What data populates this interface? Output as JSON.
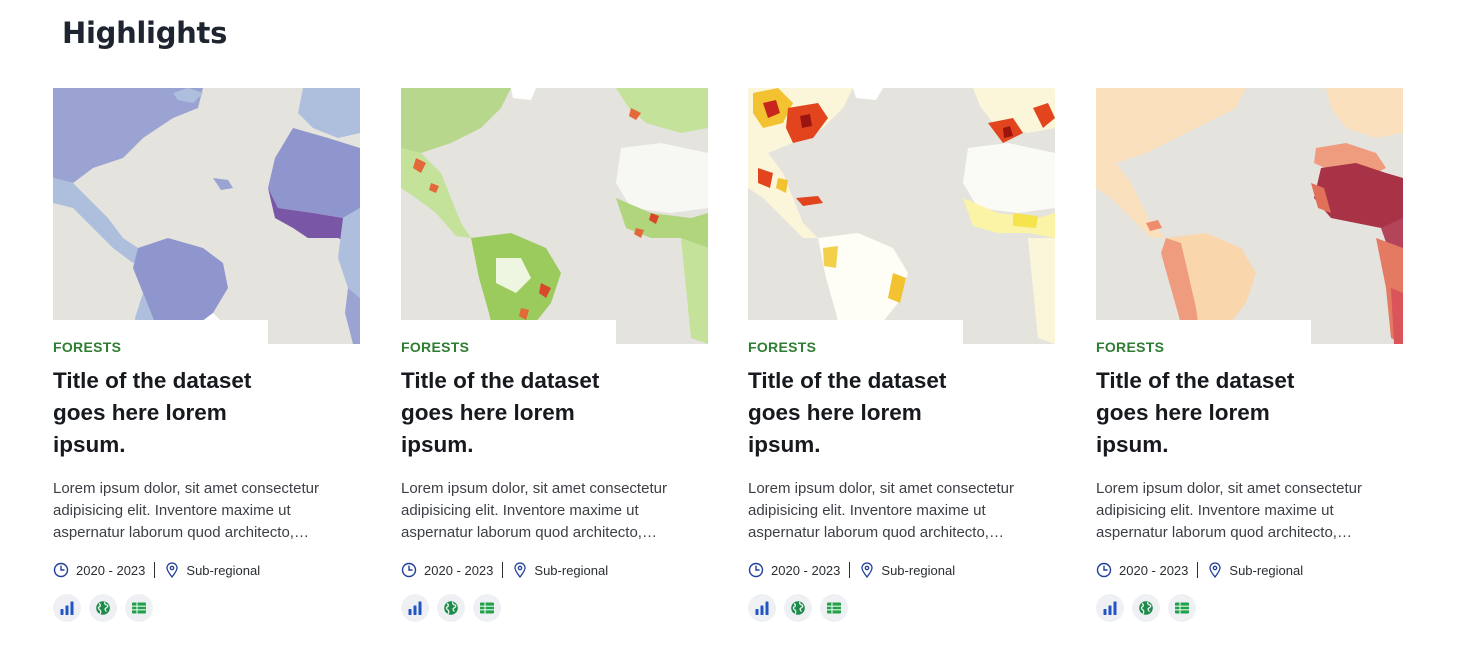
{
  "section": {
    "title": "Highlights"
  },
  "cards": [
    {
      "category": "FORESTS",
      "title": "Title of the dataset goes here lorem ipsum.",
      "description": "Lorem ipsum dolor, sit amet consectetur adipisicing elit. Inventore maxime ut aspernatur laborum quod architecto, obcaecati.",
      "years": "2020 - 2023",
      "scope": "Sub-regional",
      "map_theme": "purple",
      "icons": [
        "bar-chart-icon",
        "globe-icon",
        "table-icon"
      ]
    },
    {
      "category": "FORESTS",
      "title": "Title of the dataset goes here lorem ipsum.",
      "description": "Lorem ipsum dolor, sit amet consectetur adipisicing elit. Inventore maxime ut aspernatur laborum quod architecto, obcaecati.",
      "years": "2020 - 2023",
      "scope": "Sub-regional",
      "map_theme": "green",
      "icons": [
        "bar-chart-icon",
        "globe-icon",
        "table-icon"
      ]
    },
    {
      "category": "FORESTS",
      "title": "Title of the dataset goes here lorem ipsum.",
      "description": "Lorem ipsum dolor, sit amet consectetur adipisicing elit. Inventore maxime ut aspernatur laborum quod architecto, obcaecati.",
      "years": "2020 - 2023",
      "scope": "Sub-regional",
      "map_theme": "red",
      "icons": [
        "bar-chart-icon",
        "globe-icon",
        "table-icon"
      ]
    },
    {
      "category": "FORESTS",
      "title": "Title of the dataset goes here lorem ipsum.",
      "description": "Lorem ipsum dolor, sit amet consectetur adipisicing elit. Inventore maxime ut aspernatur laborum quod architecto, obcaecati.",
      "years": "2020 - 2023",
      "scope": "Sub-regional",
      "map_theme": "peach",
      "icons": [
        "bar-chart-icon",
        "globe-icon",
        "table-icon"
      ]
    }
  ],
  "colors": {
    "category": "#2e7d32",
    "chart_icon": "#2255c4",
    "globe_icon": "#1e8a4c",
    "table_icon": "#22a04a",
    "map_land_base": "#e6e5e0"
  }
}
